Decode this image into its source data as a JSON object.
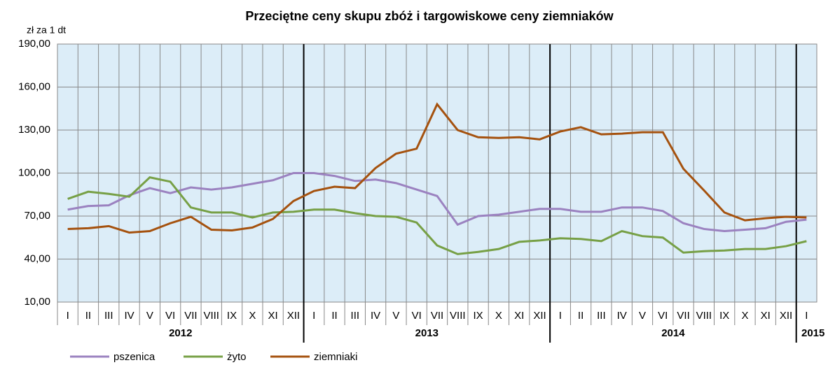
{
  "chart_data": {
    "type": "line",
    "title": "Przeciętne ceny skupu zbóż i targowiskowe ceny ziemniaków",
    "y_axis_label": "zł za 1 dt",
    "categories": [
      "I",
      "II",
      "III",
      "IV",
      "V",
      "VI",
      "VII",
      "VIII",
      "IX",
      "X",
      "XI",
      "XII",
      "I",
      "II",
      "III",
      "IV",
      "V",
      "VI",
      "VII",
      "VIII",
      "IX",
      "X",
      "XI",
      "XII",
      "I",
      "II",
      "III",
      "IV",
      "V",
      "VI",
      "VII",
      "VIII",
      "IX",
      "X",
      "XI",
      "XII",
      "I"
    ],
    "years": [
      "2012",
      "2013",
      "2014",
      "2015"
    ],
    "series": [
      {
        "name": "pszenica",
        "color": "#9b82c0",
        "values": [
          74.5,
          77,
          77.5,
          84.5,
          89.5,
          86,
          90,
          88.5,
          90,
          92.5,
          95,
          100,
          100,
          98,
          94.5,
          95.5,
          93,
          88.5,
          84,
          64,
          70,
          71,
          73,
          75,
          75,
          73,
          73,
          76,
          76,
          73.5,
          65,
          61,
          59.5,
          60.5,
          61.5,
          66,
          67.5
        ]
      },
      {
        "name": "żyto",
        "color": "#77a046",
        "values": [
          82,
          87,
          85.5,
          83.5,
          97,
          94,
          76,
          72.5,
          72.5,
          69,
          72.5,
          73,
          74.5,
          74.5,
          72,
          70,
          69.5,
          65.5,
          49.5,
          43.5,
          45,
          47,
          52,
          53,
          54.5,
          54,
          52.5,
          59.5,
          56,
          55,
          44.5,
          45.5,
          46,
          47,
          47,
          49,
          52.5
        ]
      },
      {
        "name": "ziemniaki",
        "color": "#a5520f",
        "values": [
          61,
          61.5,
          63,
          58.5,
          59.5,
          65,
          69.5,
          60.5,
          60,
          62,
          68,
          80.5,
          87.5,
          90.5,
          89.5,
          103.5,
          113.5,
          117,
          148,
          130,
          125,
          124.5,
          125,
          123.5,
          129,
          132,
          127,
          127.5,
          128.5,
          128.5,
          103,
          88,
          72.5,
          67,
          68.5,
          69.5,
          69
        ]
      }
    ],
    "ylim": [
      10,
      190
    ],
    "yticks": [
      {
        "value": 10,
        "label": "10,00"
      },
      {
        "value": 40,
        "label": "40,00"
      },
      {
        "value": 70,
        "label": "70,00"
      },
      {
        "value": 100,
        "label": "100,00"
      },
      {
        "value": 130,
        "label": "130,00"
      },
      {
        "value": 160,
        "label": "160,00"
      },
      {
        "value": 190,
        "label": "190,00"
      }
    ],
    "grid": true,
    "legend": "bottom-left"
  }
}
